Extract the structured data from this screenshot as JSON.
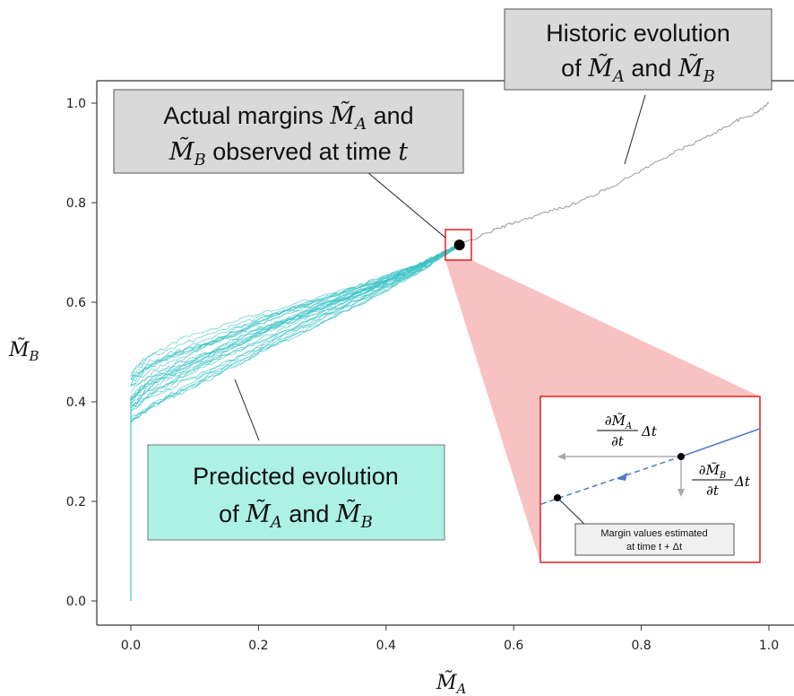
{
  "chart_data": {
    "type": "line",
    "xlabel": "M̃_A",
    "ylabel": "M̃_B",
    "xlim": [
      -0.05,
      1.04
    ],
    "ylim": [
      -0.05,
      1.05
    ],
    "x_ticks": [
      "0.0",
      "0.2",
      "0.4",
      "0.6",
      "0.8",
      "1.0"
    ],
    "y_ticks": [
      "0.0",
      "0.2",
      "0.4",
      "0.6",
      "0.8",
      "1.0"
    ],
    "grid": false,
    "series": [
      {
        "role": "historic",
        "color": "#999999",
        "x": [
          0.515,
          0.56,
          0.6,
          0.65,
          0.7,
          0.75,
          0.8,
          0.85,
          0.9,
          0.95,
          0.98,
          1.0
        ],
        "y": [
          0.715,
          0.74,
          0.76,
          0.78,
          0.8,
          0.83,
          0.865,
          0.9,
          0.93,
          0.965,
          0.98,
          1.0
        ]
      },
      {
        "role": "predicted",
        "color": "#3cc3c5",
        "count": 30,
        "x": [
          0.0,
          0.03,
          0.08,
          0.15,
          0.22,
          0.3,
          0.38,
          0.45,
          0.5,
          0.515
        ],
        "y": [
          0.41,
          0.44,
          0.47,
          0.51,
          0.55,
          0.59,
          0.63,
          0.67,
          0.705,
          0.715
        ],
        "vertical_segment": {
          "x": 0.0,
          "y": [
            0.0,
            0.41
          ]
        }
      }
    ],
    "current_point": {
      "x": 0.515,
      "y": 0.715
    }
  },
  "annotations": {
    "historic": {
      "line1": "Historic evolution",
      "line2_pre": "of ",
      "line2_a": "M̃",
      "line2_a_sub": "A",
      "line2_mid": " and ",
      "line2_b": "M̃",
      "line2_b_sub": "B"
    },
    "actual": {
      "line1_pre": "Actual margins ",
      "line1_m": "M̃",
      "line1_sub": "A",
      "line1_post": " and",
      "line2_m": "M̃",
      "line2_sub": "B",
      "line2_post": " observed at time ",
      "line2_t": "t"
    },
    "predicted": {
      "line1": "Predicted evolution",
      "line2_pre": "of ",
      "line2_a": "M̃",
      "line2_a_sub": "A",
      "line2_mid": " and ",
      "line2_b": "M̃",
      "line2_b_sub": "B"
    }
  },
  "inset": {
    "dma_num": "∂M̃",
    "dma_sub": "A",
    "dt": "∂t",
    "delta_t": "Δt",
    "dmb_num": "∂M̃",
    "dmb_sub": "B",
    "note_line1": "Margin values estimated",
    "note_line2": "at time t + Δt"
  },
  "colors": {
    "predicted": "#3cc3c5",
    "historic": "#999999",
    "zoom_fill": "#f7b7b7",
    "zoom_border": "#e02020",
    "predicted_box": "#adf1e5",
    "gray_box": "#d9d9d9",
    "inset_line": "#4a7bc6"
  }
}
